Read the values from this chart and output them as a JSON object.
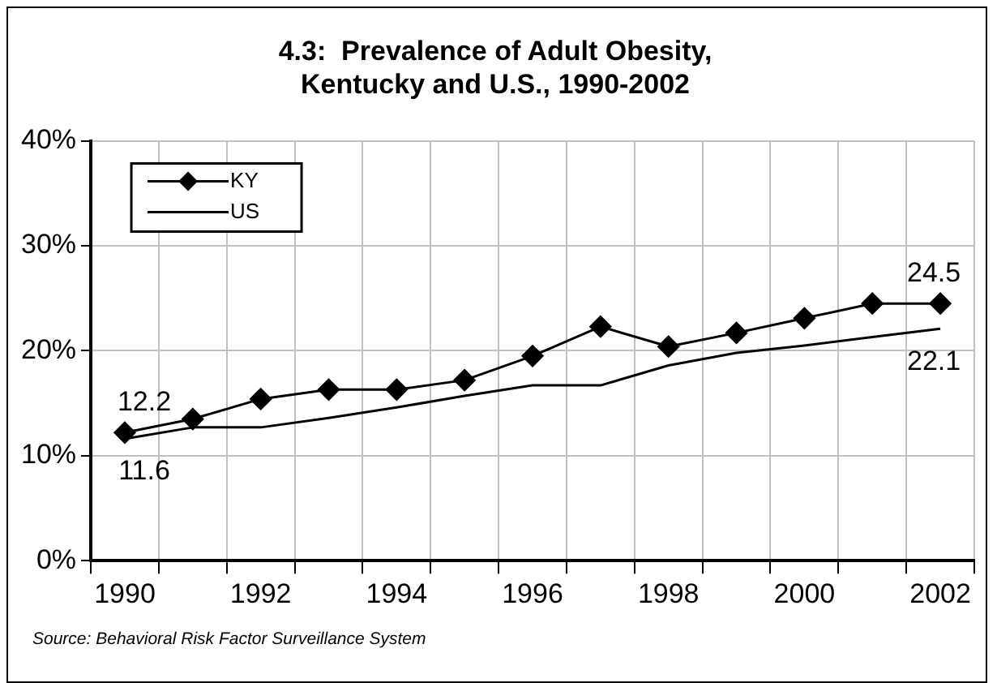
{
  "chart_data": {
    "type": "line",
    "title": "4.3:  Prevalence of Adult Obesity,\nKentucky and U.S., 1990-2002",
    "categories": [
      "1990",
      null,
      "1992",
      null,
      "1994",
      null,
      "1996",
      null,
      "1998",
      null,
      "2000",
      null,
      "2002"
    ],
    "series": [
      {
        "name": "KY",
        "color": "#000000",
        "marker": "diamond",
        "values": [
          12.2,
          13.5,
          15.4,
          16.3,
          16.3,
          17.2,
          19.5,
          22.3,
          20.4,
          21.7,
          23.1,
          24.5,
          24.5
        ],
        "value_labels": [
          "12.2",
          null,
          null,
          null,
          null,
          null,
          null,
          null,
          null,
          null,
          null,
          null,
          "24.5"
        ]
      },
      {
        "name": "US",
        "color": "#000000",
        "marker": "none",
        "values": [
          11.6,
          12.7,
          12.7,
          13.6,
          14.6,
          15.7,
          16.7,
          16.7,
          18.6,
          19.8,
          20.5,
          21.3,
          22.1
        ],
        "value_labels": [
          "11.6",
          null,
          null,
          null,
          null,
          null,
          null,
          null,
          null,
          null,
          null,
          null,
          "22.1"
        ]
      }
    ],
    "ylim": [
      0,
      40
    ],
    "yticks": [
      {
        "value": 0,
        "label": "0%"
      },
      {
        "value": 10,
        "label": "10%"
      },
      {
        "value": 20,
        "label": "20%"
      },
      {
        "value": 30,
        "label": "30%"
      },
      {
        "value": 40,
        "label": "40%"
      }
    ],
    "grid": true,
    "legend": "top left",
    "line_style": "solid",
    "annotations": [
      "Source: Behavioral Risk Factor Surveillance System"
    ]
  }
}
